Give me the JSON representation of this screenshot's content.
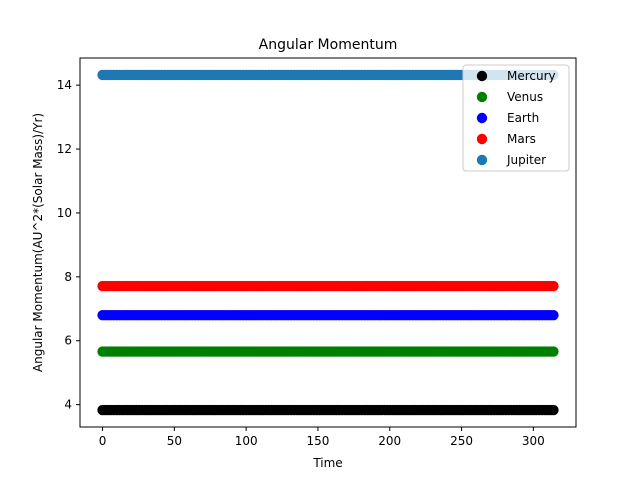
{
  "chart_data": {
    "type": "scatter",
    "title": "Angular Momentum",
    "xlabel": "Time",
    "ylabel": "Angular Momentum(AU^2*(Solar Mass)/Yr)",
    "xlim": [
      -15.7,
      329.7
    ],
    "ylim": [
      3.3,
      14.85
    ],
    "xticks": [
      0,
      50,
      100,
      150,
      200,
      250,
      300
    ],
    "yticks": [
      4,
      6,
      8,
      10,
      12,
      14
    ],
    "x_range": [
      0,
      314
    ],
    "legend_position": "top-right",
    "series": [
      {
        "name": "Mercury",
        "color": "#000000",
        "value": 3.83
      },
      {
        "name": "Venus",
        "color": "#008000",
        "value": 5.66
      },
      {
        "name": "Earth",
        "color": "#0000ff",
        "value": 6.8
      },
      {
        "name": "Mars",
        "color": "#ff0000",
        "value": 7.71
      },
      {
        "name": "Jupiter",
        "color": "#1f77b4",
        "value": 14.32
      }
    ]
  }
}
